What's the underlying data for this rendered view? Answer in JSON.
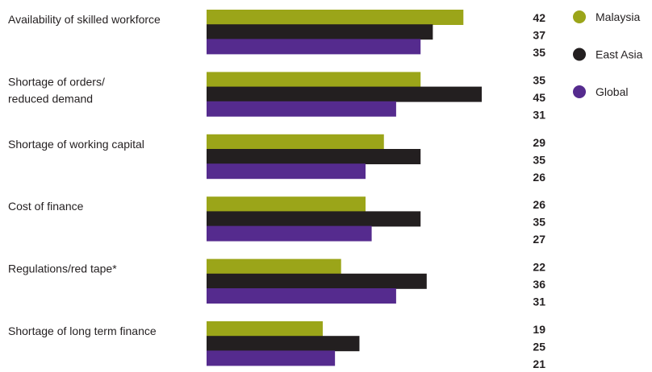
{
  "chart_data": {
    "type": "bar",
    "orientation": "horizontal",
    "categories": [
      [
        "Availability of skilled workforce"
      ],
      [
        "Shortage of orders/",
        "reduced demand"
      ],
      [
        "Shortage of working capital"
      ],
      [
        "Cost of finance"
      ],
      [
        "Regulations/red tape*"
      ],
      [
        "Shortage of long term finance"
      ]
    ],
    "series": [
      {
        "name": "Malaysia",
        "color": "#9ba519",
        "values": [
          42,
          35,
          29,
          26,
          22,
          19
        ]
      },
      {
        "name": "East Asia",
        "color": "#231f20",
        "values": [
          37,
          45,
          35,
          35,
          36,
          25
        ]
      },
      {
        "name": "Global",
        "color": "#552b8e",
        "values": [
          35,
          31,
          26,
          27,
          31,
          21
        ]
      }
    ],
    "legend_position": "right",
    "grid": false,
    "xlim": [
      0,
      45
    ]
  }
}
